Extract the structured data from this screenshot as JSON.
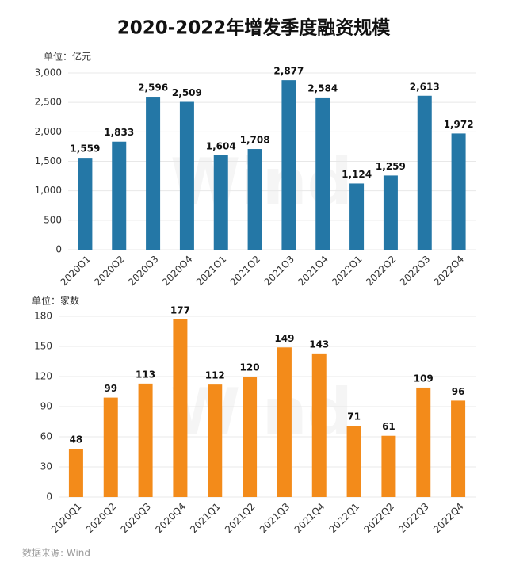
{
  "title": "2020-2022年增发季度融资规模",
  "watermark": "Wind",
  "source": "数据来源: Wind",
  "chart_data": [
    {
      "type": "bar",
      "y_label": "单位：亿元",
      "categories": [
        "2020Q1",
        "2020Q2",
        "2020Q3",
        "2020Q4",
        "2021Q1",
        "2021Q2",
        "2021Q3",
        "2021Q4",
        "2022Q1",
        "2022Q2",
        "2022Q3",
        "2022Q4"
      ],
      "values": [
        1559,
        1833,
        2596,
        2509,
        1604,
        1708,
        2877,
        2584,
        1124,
        1259,
        2613,
        1972
      ],
      "value_labels": [
        "1,559",
        "1,833",
        "2,596",
        "2,509",
        "1,604",
        "1,708",
        "2,877",
        "2,584",
        "1,124",
        "1,259",
        "2,613",
        "1,972"
      ],
      "color": "#2477a6",
      "ylim": [
        0,
        3000
      ],
      "yticks": [
        0,
        500,
        {
          "value": 1000,
          "label": "1,000"
        },
        {
          "value": 1500,
          "label": "1,500"
        },
        {
          "value": 2000,
          "label": "2,000"
        },
        {
          "value": 2500,
          "label": "2,500"
        },
        {
          "value": 3000,
          "label": "3,000"
        }
      ],
      "grid": true
    },
    {
      "type": "bar",
      "y_label": "单位：家数",
      "categories": [
        "2020Q1",
        "2020Q2",
        "2020Q3",
        "2020Q4",
        "2021Q1",
        "2021Q2",
        "2021Q3",
        "2021Q4",
        "2022Q1",
        "2022Q2",
        "2022Q3",
        "2022Q4"
      ],
      "values": [
        48,
        99,
        113,
        177,
        112,
        120,
        149,
        143,
        71,
        61,
        109,
        96
      ],
      "color": "#f38b1a",
      "ylim": [
        0,
        180
      ],
      "yticks": [
        0,
        30,
        60,
        90,
        120,
        150,
        180
      ],
      "grid": true
    }
  ]
}
